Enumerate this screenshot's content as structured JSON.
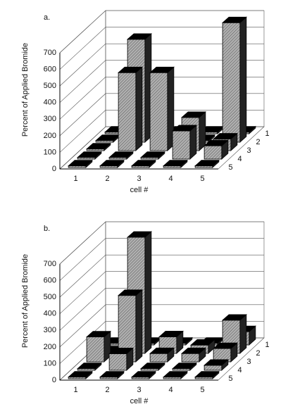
{
  "chart_data": [
    {
      "type": "bar3d",
      "title": "a.",
      "x_label": "cell #",
      "y_label": "Percent of Applied Bromide",
      "categories": [
        "1",
        "2",
        "3",
        "4",
        "5"
      ],
      "series": [
        {
          "name": "1",
          "values": [
            10,
            10,
            10,
            10,
            10
          ]
        },
        {
          "name": "2",
          "values": [
            10,
            620,
            10,
            10,
            720
          ]
        },
        {
          "name": "3",
          "values": [
            10,
            470,
            470,
            200,
            70
          ]
        },
        {
          "name": "4",
          "values": [
            10,
            10,
            10,
            170,
            80
          ]
        },
        {
          "name": "5",
          "values": [
            10,
            10,
            10,
            10,
            10
          ]
        }
      ],
      "color": "#8a8a8a",
      "ylim": [
        0,
        700
      ],
      "yticks": [
        0,
        100,
        200,
        300,
        400,
        500,
        600,
        700
      ],
      "grid": true
    },
    {
      "type": "bar3d",
      "title": "b.",
      "x_label": "cell #",
      "y_label": "Percent of Applied Bromide",
      "categories": [
        "1",
        "2",
        "3",
        "4",
        "5"
      ],
      "series": [
        {
          "name": "1",
          "values": [
            10,
            10,
            10,
            10,
            80
          ]
        },
        {
          "name": "2",
          "values": [
            10,
            700,
            100,
            50,
            200
          ]
        },
        {
          "name": "3",
          "values": [
            150,
            400,
            50,
            50,
            80
          ]
        },
        {
          "name": "4",
          "values": [
            10,
            100,
            10,
            10,
            30
          ]
        },
        {
          "name": "5",
          "values": [
            10,
            10,
            10,
            10,
            10
          ]
        }
      ],
      "color": "#8a8a8a",
      "ylim": [
        0,
        700
      ],
      "yticks": [
        0,
        100,
        200,
        300,
        400,
        500,
        600,
        700
      ],
      "grid": true
    }
  ]
}
